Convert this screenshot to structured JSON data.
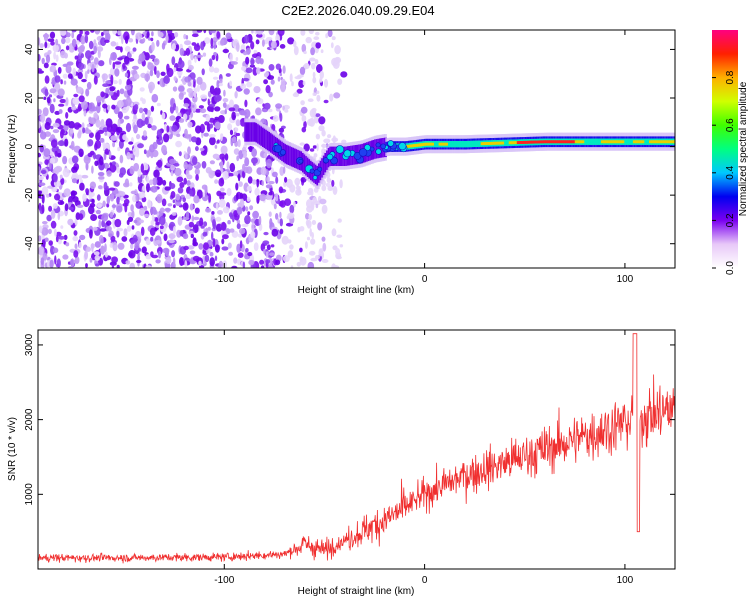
{
  "title": "C2E2.2026.040.09.29.E04",
  "chart_data": [
    {
      "type": "heatmap",
      "xlabel": "Height of straight line (km)",
      "ylabel": "Frequency (Hz)",
      "xlim": [
        -193,
        125
      ],
      "ylim": [
        -50,
        48
      ],
      "xticks": [
        -100,
        0,
        100
      ],
      "yticks": [
        -40,
        -20,
        0,
        20,
        40
      ],
      "colorbar": {
        "label": "Normalized spectral amplitude",
        "range": [
          0,
          1
        ],
        "ticks": [
          0.0,
          0.2,
          0.4,
          0.6,
          0.8
        ]
      },
      "ridge": {
        "x": [
          -85,
          -78,
          -70,
          -62,
          -57,
          -54,
          -48,
          -40,
          -32,
          -25,
          -18,
          -10,
          0,
          20,
          40,
          60,
          80,
          100,
          125
        ],
        "y": [
          6,
          2,
          -3,
          -6,
          -10,
          -12,
          -4,
          -4,
          -3,
          -1,
          0,
          0,
          1,
          1,
          1.5,
          2,
          2,
          2,
          2
        ]
      }
    },
    {
      "type": "line",
      "xlabel": "Height of straight line (km)",
      "ylabel": "SNR (10 * v/v)",
      "xlim": [
        -193,
        125
      ],
      "ylim": [
        0,
        3200
      ],
      "xticks": [
        -100,
        0,
        100
      ],
      "yticks": [
        1000,
        2000,
        3000
      ],
      "series": [
        {
          "name": "SNR",
          "color": "#f03030",
          "trend_x": [
            -193,
            -150,
            -100,
            -70,
            -60,
            -50,
            -40,
            -30,
            -20,
            -10,
            0,
            20,
            40,
            60,
            80,
            100,
            125
          ],
          "trend_y": [
            150,
            150,
            160,
            200,
            330,
            250,
            380,
            520,
            650,
            820,
            1000,
            1250,
            1420,
            1600,
            1780,
            1960,
            2150
          ]
        }
      ]
    }
  ]
}
